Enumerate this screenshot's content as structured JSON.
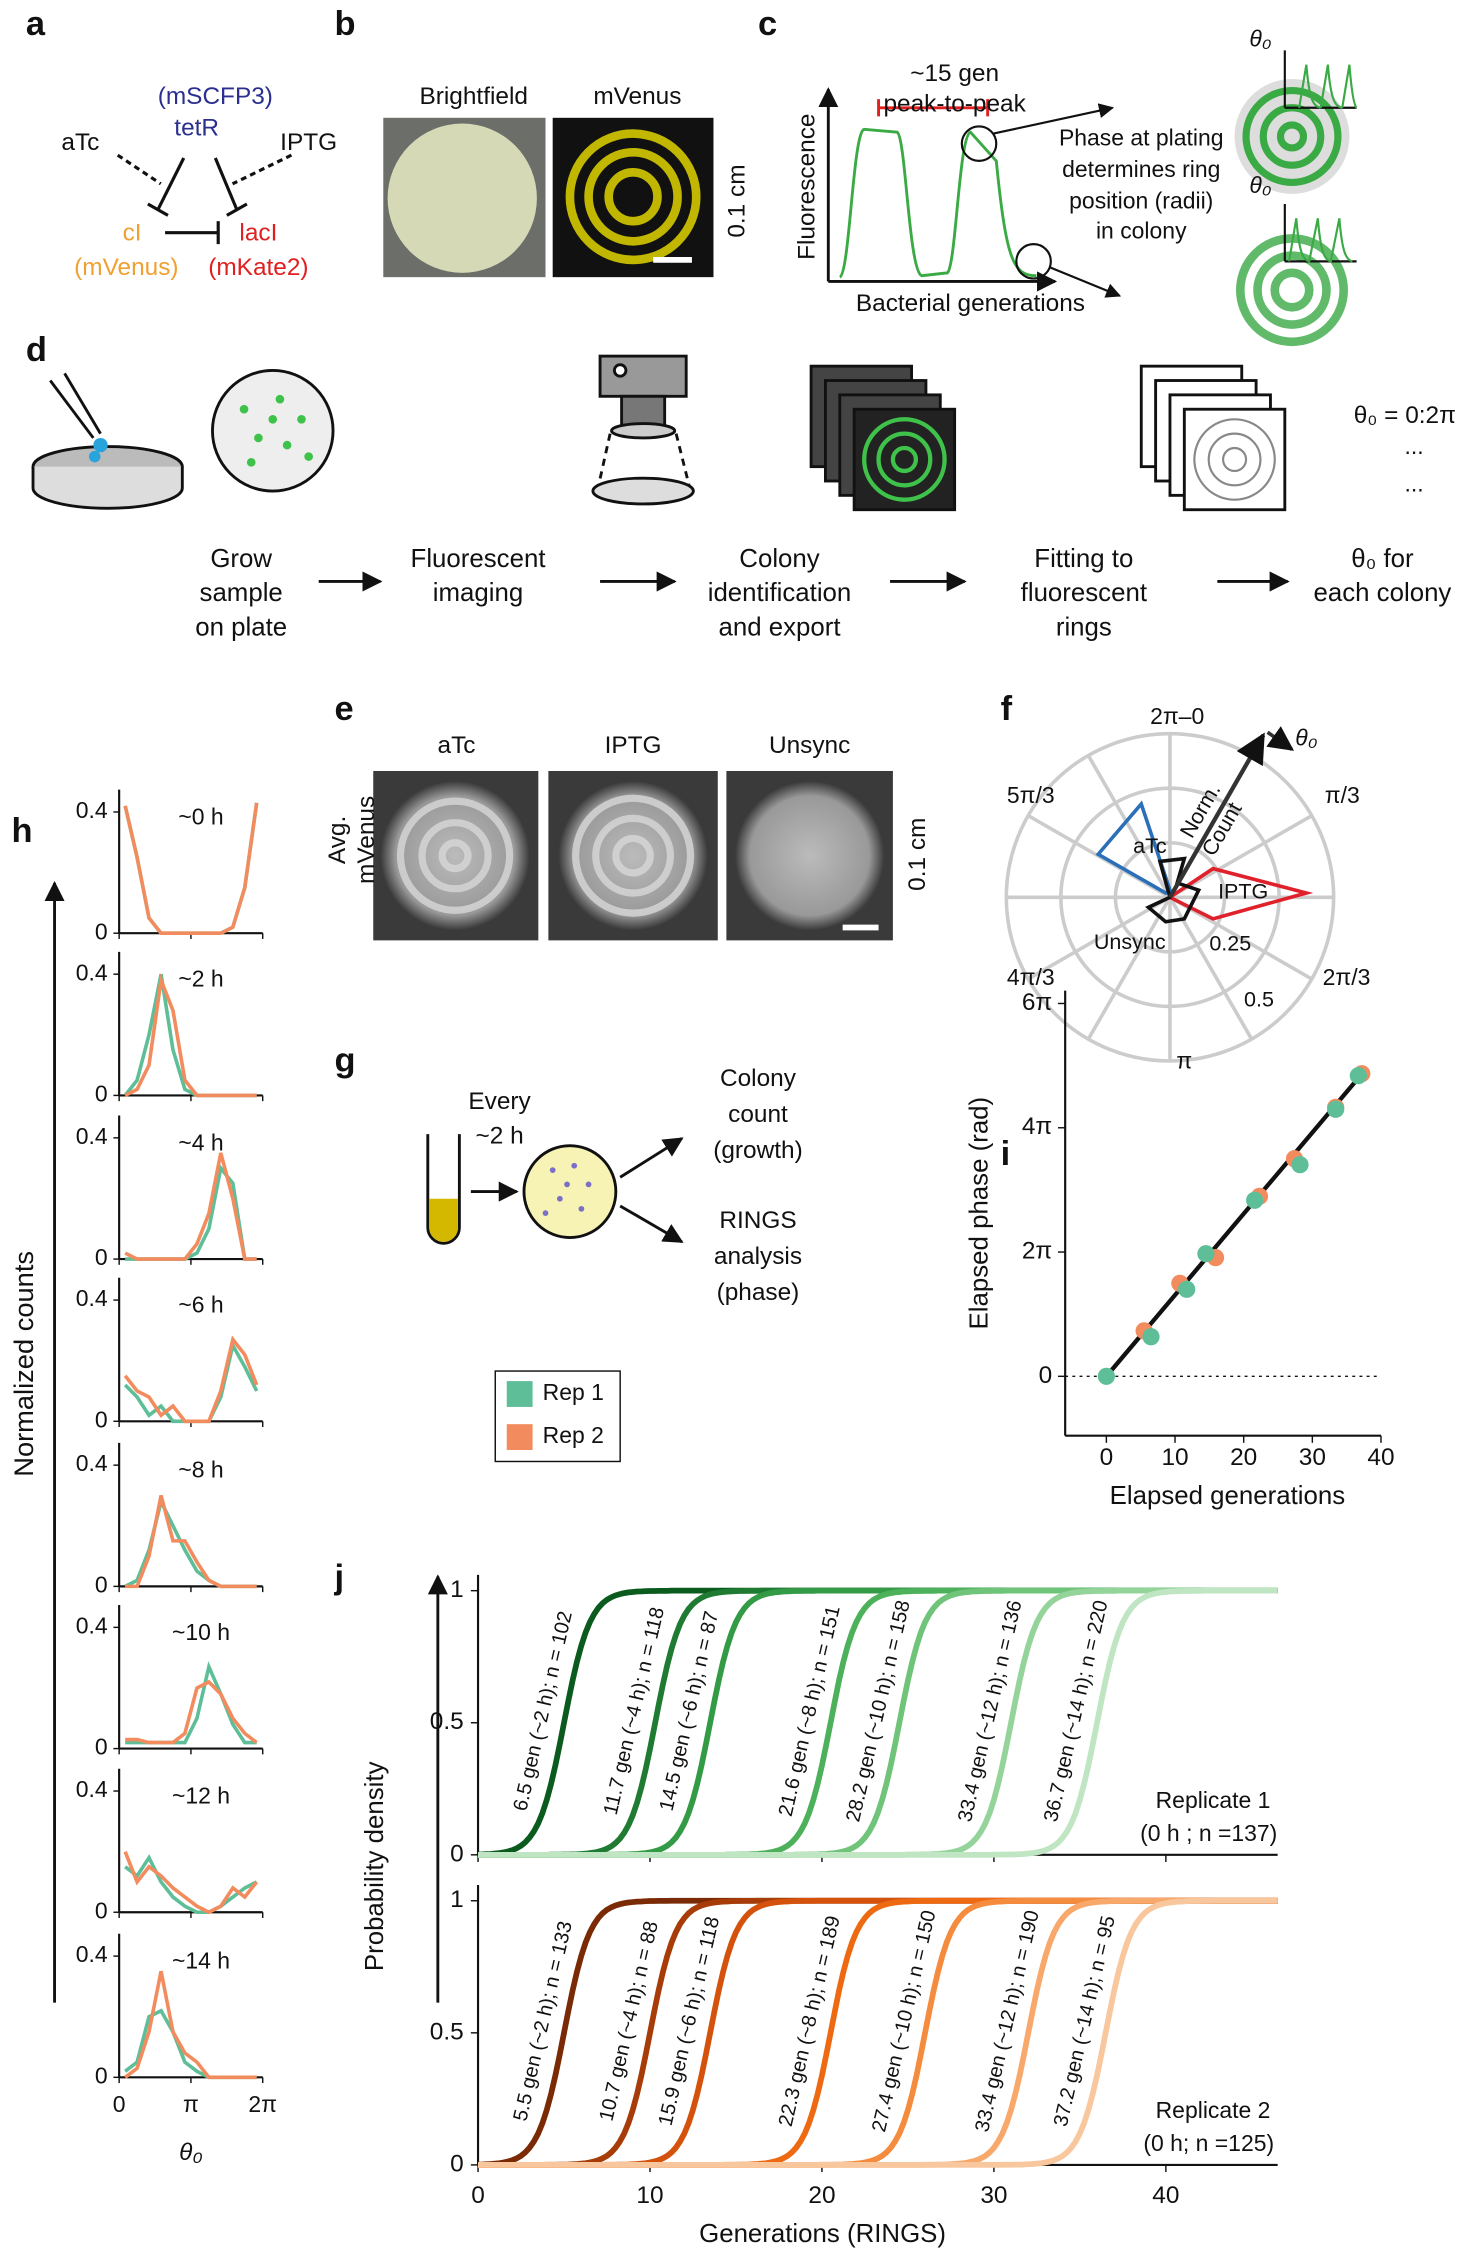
{
  "panel_labels": [
    "a",
    "b",
    "c",
    "d",
    "e",
    "f",
    "h",
    "g",
    "i",
    "j"
  ],
  "legend": [
    {
      "name": "Rep 1",
      "color": "#5dbe98"
    },
    {
      "name": "Rep 2",
      "color": "#f28c5e"
    }
  ],
  "a": {
    "tetR_tag": "(mSCFP3)",
    "tetR": "tetR",
    "aTc": "aTc",
    "IPTG": "IPTG",
    "cI": "cI",
    "cI_tag": "(mVenus)",
    "lacI": "lacI",
    "lacI_tag": "(mKate2)"
  },
  "b": {
    "titles": [
      "Brightfield",
      "mVenus"
    ],
    "scale": "0.1 cm"
  },
  "c": {
    "period": [
      "~15 gen",
      "peak-to-peak"
    ],
    "ylabel": "Fluorescence",
    "xlabel": "Bacterial generations",
    "note": [
      "Phase at plating",
      "determines ring",
      "position (radii)",
      "in colony"
    ],
    "theta": [
      "θ₀",
      "θ₀"
    ]
  },
  "d": {
    "steps": [
      [
        "Grow",
        "sample",
        "on plate"
      ],
      [
        "Fluorescent",
        "imaging"
      ],
      [
        "Colony",
        "identification",
        "and export"
      ],
      [
        "Fitting to",
        "fluorescent",
        "rings"
      ],
      [
        "θ₀ for",
        "each colony"
      ]
    ],
    "range": "θ₀ = 0:2π",
    "ellipsis": [
      "...",
      "..."
    ]
  },
  "e": {
    "titles": [
      "aTc",
      "IPTG",
      "Unsync"
    ],
    "ylabel": [
      "Avg.",
      "mVenus"
    ],
    "scale": "0.1 cm"
  },
  "f": {
    "angles": [
      "2π–0",
      "π/3",
      "2π/3",
      "π",
      "4π/3",
      "5π/3"
    ],
    "radii": [
      "0.25",
      "0.5"
    ],
    "series": [
      "aTc",
      "IPTG",
      "Unsync"
    ],
    "axis": [
      "Norm.",
      "Count"
    ],
    "theta": "θ₀"
  },
  "g": {
    "every": [
      "Every",
      "~2 h"
    ],
    "count": [
      "Colony",
      "count",
      "(growth)"
    ],
    "rings": [
      "RINGS",
      "analysis",
      "(phase)"
    ]
  },
  "h": {
    "type": "line",
    "ylabel": "Normalized counts",
    "xlabel": "θ₀",
    "xlim": [
      0,
      6.2832
    ],
    "xticks": [
      0,
      {
        "value": 3.1416,
        "label": "π"
      },
      {
        "value": 6.2832,
        "label": "2π"
      }
    ],
    "ylim": [
      0,
      0.45
    ],
    "yticks": [
      0,
      0.4
    ],
    "panels": [
      {
        "title": "~0 h",
        "series": [
          {
            "values": [
              0.42,
              0.25,
              0.05,
              0,
              0,
              0,
              0,
              0,
              0,
              0.02,
              0.15,
              0.43
            ]
          },
          {
            "values": [
              0.42,
              0.25,
              0.05,
              0,
              0,
              0,
              0,
              0,
              0,
              0.02,
              0.15,
              0.43
            ]
          }
        ]
      },
      {
        "title": "~2 h",
        "series": [
          {
            "values": [
              0,
              0.05,
              0.2,
              0.4,
              0.15,
              0.02,
              0,
              0,
              0,
              0,
              0,
              0
            ]
          },
          {
            "values": [
              0,
              0.02,
              0.1,
              0.38,
              0.28,
              0.05,
              0,
              0,
              0,
              0,
              0,
              0
            ]
          }
        ]
      },
      {
        "title": "~4 h",
        "series": [
          {
            "values": [
              0,
              0,
              0,
              0,
              0,
              0,
              0.02,
              0.1,
              0.3,
              0.25,
              0,
              0
            ]
          },
          {
            "values": [
              0.02,
              0,
              0,
              0,
              0,
              0,
              0.05,
              0.15,
              0.35,
              0.2,
              0,
              0
            ]
          }
        ]
      },
      {
        "title": "~6 h",
        "series": [
          {
            "values": [
              0.12,
              0.08,
              0.02,
              0.05,
              0,
              0,
              0,
              0,
              0.08,
              0.25,
              0.18,
              0.1
            ]
          },
          {
            "values": [
              0.15,
              0.1,
              0.08,
              0.02,
              0.05,
              0,
              0,
              0,
              0.1,
              0.27,
              0.22,
              0.12
            ]
          }
        ]
      },
      {
        "title": "~8 h",
        "series": [
          {
            "values": [
              0,
              0.02,
              0.12,
              0.28,
              0.2,
              0.12,
              0.05,
              0.02,
              0,
              0,
              0,
              0
            ]
          },
          {
            "values": [
              0,
              0,
              0.1,
              0.3,
              0.15,
              0.15,
              0.08,
              0.02,
              0,
              0,
              0,
              0
            ]
          }
        ]
      },
      {
        "title": "~10 h",
        "series": [
          {
            "values": [
              0.02,
              0.02,
              0.02,
              0.02,
              0.02,
              0.02,
              0.1,
              0.27,
              0.18,
              0.08,
              0.02,
              0.02
            ]
          },
          {
            "values": [
              0.03,
              0.03,
              0.02,
              0.02,
              0.02,
              0.05,
              0.2,
              0.22,
              0.18,
              0.1,
              0.05,
              0.02
            ]
          }
        ]
      },
      {
        "title": "~12 h",
        "series": [
          {
            "values": [
              0.15,
              0.12,
              0.18,
              0.1,
              0.05,
              0.02,
              0,
              0,
              0.02,
              0.05,
              0.08,
              0.1
            ]
          },
          {
            "values": [
              0.2,
              0.1,
              0.15,
              0.12,
              0.08,
              0.05,
              0.02,
              0,
              0.02,
              0.08,
              0.05,
              0.1
            ]
          }
        ]
      },
      {
        "title": "~14 h",
        "series": [
          {
            "values": [
              0.02,
              0.05,
              0.2,
              0.22,
              0.15,
              0.05,
              0.02,
              0,
              0,
              0,
              0,
              0
            ]
          },
          {
            "values": [
              0,
              0.03,
              0.15,
              0.35,
              0.15,
              0.08,
              0.05,
              0,
              0,
              0,
              0,
              0
            ]
          }
        ]
      }
    ]
  },
  "i": {
    "type": "scatter",
    "ylabel": "Elapsed phase (rad)",
    "xlabel": "Elapsed generations",
    "xlim": [
      -6,
      40
    ],
    "xticks": [
      0,
      10,
      20,
      30,
      40
    ],
    "ylim": [
      -3,
      19.5
    ],
    "yticks": [
      0,
      {
        "value": 6.2832,
        "label": "2π"
      },
      {
        "value": 12.566,
        "label": "4π"
      },
      {
        "value": 18.85,
        "label": "6π"
      }
    ],
    "fit": {
      "x": [
        0,
        37
      ],
      "values": [
        0,
        15.2
      ]
    },
    "series": [
      {
        "x": [
          0,
          6.5,
          11.7,
          14.5,
          21.6,
          28.2,
          33.4,
          36.7
        ],
        "values": [
          0,
          2.0,
          4.4,
          6.2,
          8.9,
          10.7,
          13.5,
          15.2
        ]
      },
      {
        "x": [
          5.5,
          10.7,
          15.9,
          22.3,
          27.4,
          33.4,
          37.2
        ],
        "values": [
          2.3,
          4.7,
          6.0,
          9.1,
          11.0,
          13.6,
          15.3
        ]
      }
    ]
  },
  "j": {
    "ylabel": "Probability density",
    "xlabel": "Generations (RINGS)",
    "xlim": [
      0,
      46.5
    ],
    "xticks": [
      0,
      10,
      20,
      30,
      40
    ],
    "ylim": [
      0,
      1
    ],
    "yticks": [
      0,
      0.5,
      1
    ],
    "panels": [
      {
        "title": "Replicate 1",
        "note": "(0 h ; n =137)",
        "series": [
          {
            "name": "6.5 gen (~2 h); n = 102",
            "color": "#0b5a1e",
            "median": 5.0
          },
          {
            "name": "11.7 gen (~4 h); n = 118",
            "color": "#1f7a32",
            "median": 10.3
          },
          {
            "name": "14.5 gen (~6 h); n = 87",
            "color": "#339b45",
            "median": 13.5
          },
          {
            "name": "21.6 gen (~8 h); n = 151",
            "color": "#4cb15a",
            "median": 20.5
          },
          {
            "name": "28.2 gen (~10 h); n = 158",
            "color": "#6fc47a",
            "median": 24.5
          },
          {
            "name": "33.4 gen (~12 h); n = 136",
            "color": "#94d49b",
            "median": 31.0
          },
          {
            "name": "36.7 gen (~14 h); n = 220",
            "color": "#bfe5c2",
            "median": 36.0
          }
        ]
      },
      {
        "title": "Replicate 2",
        "note": "(0 h; n =125)",
        "series": [
          {
            "name": "5.5 gen (~2 h); n = 133",
            "color": "#7a2a05",
            "median": 5.0
          },
          {
            "name": "10.7 gen (~4 h); n = 88",
            "color": "#a83c08",
            "median": 10.0
          },
          {
            "name": "15.9 gen (~6 h); n = 118",
            "color": "#d4520c",
            "median": 13.5
          },
          {
            "name": "22.3 gen (~8 h); n = 189",
            "color": "#ee6a12",
            "median": 20.5
          },
          {
            "name": "27.4 gen (~10 h); n = 150",
            "color": "#f48b3d",
            "median": 26.0
          },
          {
            "name": "33.4 gen (~12 h); n = 190",
            "color": "#f7a86a",
            "median": 32.0
          },
          {
            "name": "37.2 gen (~14 h); n = 95",
            "color": "#f9c79d",
            "median": 36.5
          }
        ]
      }
    ]
  }
}
